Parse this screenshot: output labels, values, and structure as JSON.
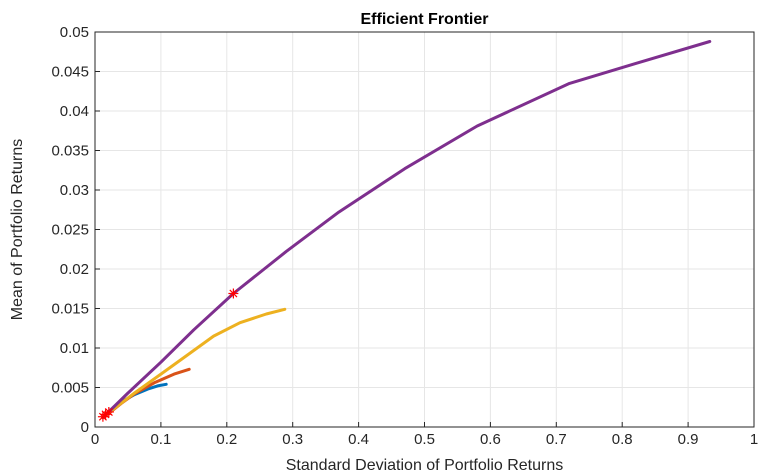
{
  "chart_data": {
    "type": "line",
    "title": "Efficient Frontier",
    "xlabel": "Standard Deviation of Portfolio Returns",
    "ylabel": "Mean of Portfolio Returns",
    "xlim": [
      0,
      1
    ],
    "ylim": [
      0,
      0.05
    ],
    "xticks": [
      "0",
      "0.1",
      "0.2",
      "0.3",
      "0.4",
      "0.5",
      "0.6",
      "0.7",
      "0.8",
      "0.9",
      "1"
    ],
    "yticks": [
      "0",
      "0.005",
      "0.01",
      "0.015",
      "0.02",
      "0.025",
      "0.03",
      "0.035",
      "0.04",
      "0.045",
      "0.05"
    ],
    "grid": true,
    "legend": false,
    "series": [
      {
        "color": "#0072BD",
        "x": [
          0.012,
          0.02,
          0.03,
          0.045,
          0.06,
          0.08,
          0.095,
          0.108
        ],
        "y": [
          0.0012,
          0.0019,
          0.0026,
          0.0034,
          0.0041,
          0.0048,
          0.0052,
          0.0054
        ]
      },
      {
        "color": "#D95319",
        "x": [
          0.012,
          0.025,
          0.04,
          0.06,
          0.09,
          0.12,
          0.143
        ],
        "y": [
          0.0012,
          0.002,
          0.003,
          0.0042,
          0.0056,
          0.0067,
          0.0073
        ]
      },
      {
        "color": "#EDB120",
        "x": [
          0.012,
          0.03,
          0.06,
          0.1,
          0.14,
          0.18,
          0.22,
          0.26,
          0.288
        ],
        "y": [
          0.0012,
          0.0024,
          0.0043,
          0.0067,
          0.0091,
          0.0115,
          0.0132,
          0.0143,
          0.0149
        ]
      },
      {
        "color": "#7E2F8E",
        "x": [
          0.012,
          0.05,
          0.1,
          0.15,
          0.21,
          0.29,
          0.37,
          0.47,
          0.58,
          0.72,
          0.82,
          0.933
        ],
        "y": [
          0.0012,
          0.0043,
          0.0082,
          0.0123,
          0.0169,
          0.0222,
          0.0272,
          0.0327,
          0.0381,
          0.0435,
          0.046,
          0.0488
        ]
      }
    ],
    "markers": [
      {
        "x": 0.012,
        "y": 0.0013,
        "color": "#FF0000",
        "symbol": "*"
      },
      {
        "x": 0.016,
        "y": 0.0016,
        "color": "#FF0000",
        "symbol": "*"
      },
      {
        "x": 0.021,
        "y": 0.0019,
        "color": "#FF0000",
        "symbol": "*"
      },
      {
        "x": 0.21,
        "y": 0.0169,
        "color": "#FF0000",
        "symbol": "*"
      }
    ]
  }
}
